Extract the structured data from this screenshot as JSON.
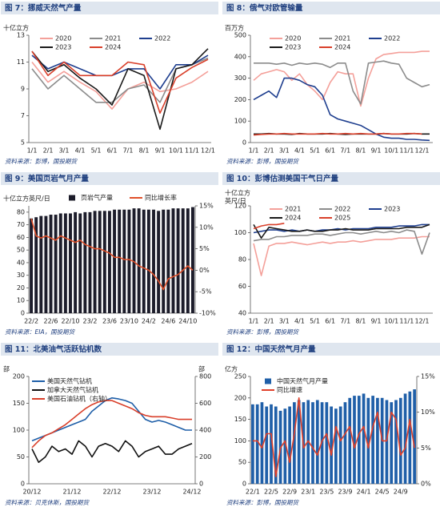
{
  "chart_data": [
    {
      "type": "line",
      "title": "图 7：挪威天然气产量",
      "source": "资料来源：彭博，国投期货",
      "ylabel": "十亿立方",
      "categories": [
        "1/1",
        "2/1",
        "3/1",
        "4/1",
        "5/1",
        "6/1",
        "7/1",
        "8/1",
        "9/1",
        "10/1",
        "11/1",
        "12/1"
      ],
      "ylim": [
        5,
        13
      ],
      "yticks": [
        5,
        7,
        9,
        11,
        13
      ],
      "series": [
        {
          "name": "2020",
          "color": "#f4a09a",
          "values": [
            11.0,
            9.5,
            10.3,
            9.5,
            8.8,
            7.5,
            9.0,
            9.5,
            8.8,
            9.0,
            9.5,
            10.3
          ]
        },
        {
          "name": "2021",
          "color": "#8c8c8c",
          "values": [
            10.5,
            9.0,
            10.0,
            9.0,
            8.0,
            8.0,
            9.0,
            9.3,
            8.0,
            10.5,
            10.8,
            11.3
          ]
        },
        {
          "name": "2022",
          "color": "#1f3f8f",
          "values": [
            11.5,
            10.5,
            11.0,
            10.5,
            10.0,
            10.0,
            10.5,
            10.5,
            9.0,
            10.8,
            10.8,
            11.5
          ]
        },
        {
          "name": "2023",
          "color": "#1a1a1a",
          "values": [
            11.8,
            10.3,
            10.8,
            9.8,
            9.0,
            7.8,
            10.5,
            10.0,
            6.0,
            10.5,
            10.8,
            12.0
          ]
        },
        {
          "name": "2024",
          "color": "#d9402b",
          "values": [
            11.8,
            10.0,
            11.0,
            10.0,
            10.0,
            10.0,
            11.0,
            10.8,
            7.2,
            9.8,
            10.6,
            11.2
          ]
        }
      ]
    },
    {
      "type": "line",
      "title": "图 8：俄气对欧管输量",
      "source": "资料来源：彭博，国投期货",
      "ylabel": "百万方",
      "categories": [
        "1/1",
        null,
        "2/1",
        null,
        "3/1",
        null,
        "4/1",
        null,
        "5/1",
        null,
        "6/1",
        null,
        "7/1",
        null,
        "8/1",
        null,
        "9/1",
        null,
        "10/1",
        null,
        "11/1",
        null,
        "12/1",
        null
      ],
      "ylim": [
        0,
        500
      ],
      "yticks": [
        0,
        100,
        200,
        300,
        400,
        500
      ],
      "series": [
        {
          "name": "2020",
          "color": "#f4a09a",
          "values": [
            290,
            320,
            330,
            340,
            330,
            290,
            320,
            270,
            240,
            200,
            280,
            330,
            320,
            320,
            170,
            300,
            390,
            410,
            415,
            420,
            420,
            420,
            425,
            425
          ]
        },
        {
          "name": "2021",
          "color": "#8c8c8c",
          "values": [
            370,
            370,
            370,
            365,
            370,
            360,
            370,
            365,
            370,
            365,
            350,
            370,
            370,
            240,
            180,
            370,
            375,
            380,
            370,
            365,
            300,
            280,
            260,
            270
          ]
        },
        {
          "name": "2022",
          "color": "#1f3f8f",
          "values": [
            200,
            220,
            240,
            210,
            300,
            300,
            290,
            270,
            260,
            220,
            130,
            110,
            100,
            90,
            80,
            60,
            40,
            25,
            20,
            20,
            15,
            15,
            12,
            10
          ]
        },
        {
          "name": "2023",
          "color": "#1a1a1a",
          "values": [
            40,
            40,
            42,
            40,
            40,
            38,
            42,
            40,
            40,
            40,
            42,
            40,
            38,
            40,
            40,
            40,
            40,
            42,
            40,
            40,
            40,
            42,
            40,
            40
          ]
        },
        {
          "name": "2024",
          "color": "#d9402b",
          "values": [
            35,
            38,
            40,
            40,
            42,
            40,
            40,
            40,
            40,
            42,
            40,
            40,
            42,
            40,
            42,
            40,
            40,
            42,
            40,
            40,
            42,
            42,
            40,
            null
          ]
        }
      ]
    },
    {
      "type": "combo",
      "title": "图 9：美国页岩气月产量",
      "source": "资料来源：EIA，国投期货",
      "ylabel": "十亿立方英尺/日",
      "categories": [
        "22/2",
        null,
        null,
        null,
        "22/6",
        null,
        null,
        null,
        "22/10",
        null,
        null,
        null,
        "23/2",
        null,
        null,
        null,
        "23/6",
        null,
        null,
        null,
        "23/10",
        null,
        null,
        null,
        "24/2",
        null,
        null,
        null,
        "24/6",
        null,
        null,
        null,
        "24/10",
        null
      ],
      "ylim": [
        0,
        85
      ],
      "yticks": [
        0,
        10,
        20,
        30,
        40,
        50,
        60,
        70,
        80
      ],
      "y2lim": [
        -10,
        15
      ],
      "y2ticks": [
        {
          "value": -10,
          "label": "-10%"
        },
        {
          "value": -5,
          "label": "-5%"
        },
        {
          "value": 0,
          "label": "0%"
        },
        {
          "value": 5,
          "label": "5%"
        },
        {
          "value": 10,
          "label": "10%"
        },
        {
          "value": 15,
          "label": "15%"
        }
      ],
      "series": [
        {
          "name": "页岩气产量",
          "type": "bar",
          "color": "#1c1c2a",
          "values": [
            75,
            76,
            77,
            77,
            78,
            78,
            79,
            79,
            79,
            80,
            79,
            80,
            80,
            81,
            81,
            81,
            81,
            82,
            82,
            82,
            82,
            83,
            83,
            82,
            82,
            82,
            81,
            82,
            82,
            83,
            83,
            83,
            83,
            84
          ]
        },
        {
          "name": "同比增长率",
          "type": "line",
          "axis": "y2",
          "color": "#e0502a",
          "values": [
            12,
            8,
            7.5,
            8,
            7.5,
            7,
            8,
            7.5,
            7,
            6.5,
            7,
            6,
            5.5,
            5,
            5,
            4.5,
            4,
            3,
            3,
            2.5,
            2.5,
            2,
            1,
            0.5,
            0,
            -1,
            -2.5,
            -4.5,
            -2,
            -1.5,
            -1,
            0,
            1,
            0
          ]
        }
      ]
    },
    {
      "type": "line",
      "title": "图 10：彭博估测美国干气日产量",
      "source": "资料来源：彭博，国投期货",
      "ylabel": [
        "十亿立方",
        "英尺/日"
      ],
      "categories": [
        "1/1",
        null,
        "2/1",
        null,
        "3/1",
        null,
        "4/1",
        null,
        "5/1",
        null,
        "6/1",
        null,
        "7/1",
        null,
        "8/1",
        null,
        "9/1",
        null,
        "10/1",
        null,
        "11/1",
        null,
        "12/1",
        null
      ],
      "ylim": [
        40,
        120
      ],
      "yticks": [
        40,
        60,
        80,
        100,
        120
      ],
      "series": [
        {
          "name": "2021",
          "color": "#f4a09a",
          "values": [
            92,
            68,
            90,
            92,
            92,
            93,
            92,
            91,
            92,
            93,
            92,
            93,
            93,
            94,
            93,
            94,
            95,
            95,
            95,
            96,
            96,
            96,
            97,
            97
          ]
        },
        {
          "name": "2022",
          "color": "#8c8c8c",
          "values": [
            94,
            95,
            95,
            97,
            97,
            98,
            98,
            98,
            99,
            99,
            98,
            99,
            100,
            100,
            99,
            100,
            101,
            100,
            101,
            100,
            102,
            101,
            84,
            100
          ]
        },
        {
          "name": "2023",
          "color": "#1f3f8f",
          "values": [
            100,
            101,
            102,
            102,
            101,
            102,
            101,
            102,
            101,
            102,
            102,
            103,
            102,
            103,
            103,
            103,
            104,
            104,
            104,
            105,
            105,
            105,
            106,
            106
          ]
        },
        {
          "name": "2024",
          "color": "#1a1a1a",
          "values": [
            106,
            96,
            104,
            103,
            102,
            101,
            101,
            102,
            101,
            101,
            102,
            102,
            103,
            102,
            102,
            102,
            103,
            103,
            103,
            103,
            104,
            104,
            104,
            106
          ]
        },
        {
          "name": "2025",
          "color": "#d9402b",
          "values": [
            103,
            105,
            106,
            106,
            107,
            null,
            null,
            null,
            null,
            null,
            null,
            null,
            null,
            null,
            null,
            null,
            null,
            null,
            null,
            null,
            null,
            null,
            null,
            null
          ]
        }
      ]
    },
    {
      "type": "line",
      "title": "图 11：北美油气活跃钻机数",
      "source": "资料来源：贝克休斯，国投期货",
      "ylabel": "部",
      "y2label": "部",
      "categories": [
        "20/12",
        null,
        null,
        null,
        null,
        null,
        "21/12",
        null,
        null,
        null,
        null,
        null,
        "22/12",
        null,
        null,
        null,
        null,
        null,
        "23/12",
        null,
        null,
        null,
        null,
        null,
        "24/12"
      ],
      "ylim": [
        0,
        200
      ],
      "yticks": [
        0,
        50,
        100,
        150,
        200
      ],
      "y2lim": [
        0,
        800
      ],
      "y2ticks": [
        0,
        200,
        400,
        600,
        800
      ],
      "series": [
        {
          "name": "美国天然气钻机",
          "color": "#1f5fa8",
          "values": [
            80,
            85,
            90,
            95,
            100,
            105,
            110,
            115,
            120,
            135,
            145,
            155,
            160,
            158,
            155,
            150,
            135,
            120,
            115,
            118,
            115,
            110,
            105,
            100,
            100
          ]
        },
        {
          "name": "加拿大天然气钻机",
          "color": "#111111",
          "values": [
            65,
            40,
            50,
            70,
            60,
            65,
            55,
            80,
            70,
            50,
            70,
            75,
            70,
            60,
            80,
            70,
            50,
            60,
            65,
            70,
            55,
            55,
            65,
            70,
            75
          ]
        },
        {
          "name": "美国石油钻机（右轴）",
          "axis": "y2",
          "color": "#d9402b",
          "values": [
            270,
            320,
            360,
            380,
            410,
            440,
            480,
            520,
            560,
            590,
            610,
            620,
            620,
            600,
            580,
            560,
            530,
            510,
            500,
            500,
            500,
            490,
            480,
            480,
            480
          ]
        }
      ]
    },
    {
      "type": "combo",
      "title": "图 12：中国天然气月产量",
      "source": "资料来源：彭博，国投期货",
      "ylabel": "亿方",
      "categories": [
        "22/1",
        null,
        null,
        null,
        "22/5",
        null,
        null,
        null,
        "22/9",
        null,
        null,
        null,
        "23/1",
        null,
        null,
        null,
        "23/5",
        null,
        null,
        null,
        "23/9",
        null,
        null,
        null,
        "24/1",
        null,
        null,
        null,
        "24/5",
        null,
        null,
        null,
        "24/9",
        null,
        null,
        null
      ],
      "ylim": [
        0,
        250
      ],
      "yticks": [
        0,
        50,
        100,
        150,
        200,
        250
      ],
      "y2lim": [
        0,
        15
      ],
      "y2ticks": [
        {
          "value": 0,
          "label": "0%"
        },
        {
          "value": 5,
          "label": "5%"
        },
        {
          "value": 10,
          "label": "10%"
        },
        {
          "value": 15,
          "label": "15%"
        }
      ],
      "series": [
        {
          "name": "中国天然气月产量",
          "type": "bar",
          "color": "#1f5fa8",
          "values": [
            185,
            185,
            190,
            180,
            185,
            180,
            170,
            175,
            180,
            190,
            195,
            190,
            195,
            190,
            195,
            190,
            190,
            180,
            175,
            180,
            190,
            200,
            205,
            205,
            210,
            200,
            205,
            200,
            200,
            195,
            190,
            195,
            200,
            210,
            215,
            220
          ]
        },
        {
          "name": "同比增速",
          "type": "line",
          "axis": "y2",
          "color": "#e0402a",
          "values": [
            6,
            6,
            5,
            7,
            7,
            1,
            5,
            6,
            3,
            7,
            12,
            5,
            6,
            5,
            4,
            6,
            7,
            4,
            8,
            6,
            7,
            8,
            5,
            7,
            8,
            5,
            8,
            10,
            6,
            6,
            10,
            9,
            4,
            5,
            9,
            5
          ]
        }
      ]
    }
  ]
}
